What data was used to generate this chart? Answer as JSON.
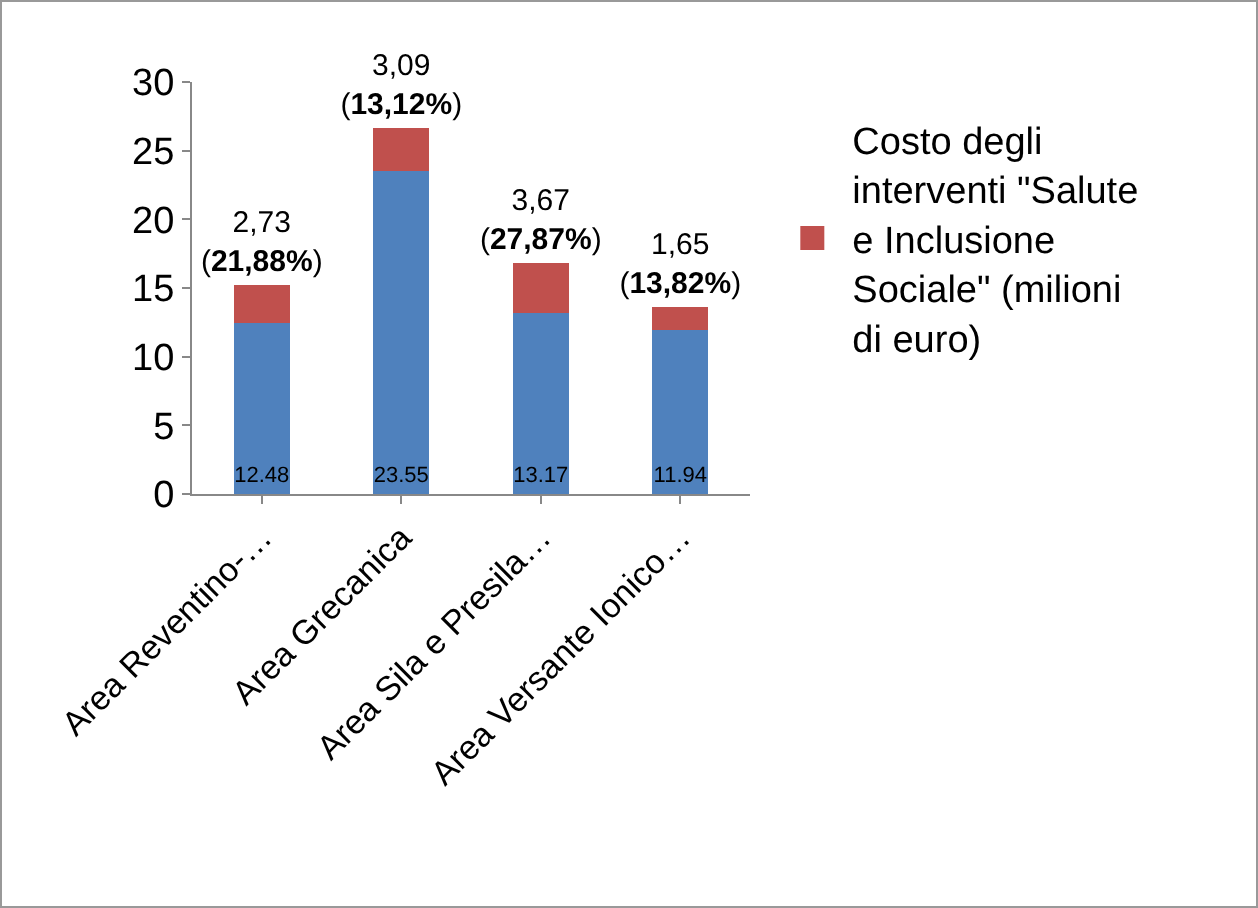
{
  "chart_data": {
    "type": "bar",
    "stacked": true,
    "categories": [
      "Area Reventino-…",
      "Area Grecanica",
      "Area Sila e Presila…",
      "Area Versante Ionico…"
    ],
    "series": [
      {
        "color": "#4f81bd",
        "values": [
          12.48,
          23.55,
          13.17,
          11.94
        ],
        "value_labels": [
          "12.48",
          "23.55",
          "13.17",
          "11.94"
        ]
      },
      {
        "name": "Costo degli interventi \"Salute e Inclusione Sociale\" (milioni di euro)",
        "color": "#c0504d",
        "values": [
          2.73,
          3.09,
          3.67,
          1.65
        ],
        "value_labels": [
          "2,73\n(21,88%)",
          "3,09\n(13,12%)",
          "3,67\n(27,87%)",
          "1,65\n(13,82%)"
        ]
      }
    ],
    "ylim": [
      0,
      30
    ],
    "yticks": [
      0,
      5,
      10,
      15,
      20,
      25,
      30
    ],
    "grid": false,
    "legend": "right"
  }
}
